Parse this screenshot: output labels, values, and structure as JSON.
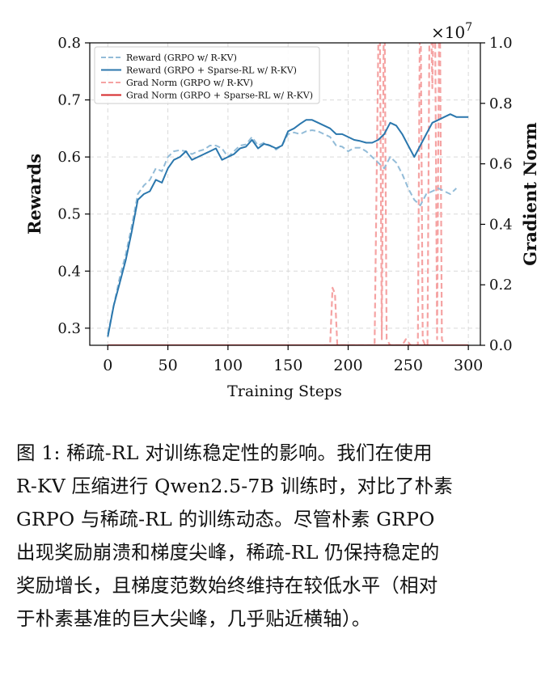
{
  "chart_data": {
    "type": "line",
    "xlabel": "Training Steps",
    "ylabel_left": "Rewards",
    "ylabel_right": "Gradient Norm",
    "right_axis_multiplier": "×10",
    "right_axis_exponent": "7",
    "xlim": [
      -15,
      310
    ],
    "ylim_left": [
      0.27,
      0.8
    ],
    "ylim_right": [
      0.0,
      1.0
    ],
    "x_ticks": [
      0,
      50,
      100,
      150,
      200,
      250,
      300
    ],
    "y_ticks_left": [
      0.3,
      0.4,
      0.5,
      0.6,
      0.7,
      0.8
    ],
    "y_ticks_right": [
      0.0,
      0.2,
      0.4,
      0.6,
      0.8,
      1.0
    ],
    "grid": true,
    "legend_position": "top-left",
    "colors": {
      "reward_grpo": "#93bcd8",
      "reward_sparse": "#2b77ad",
      "grad_grpo": "#f5a3a3",
      "grad_sparse": "#d62728"
    },
    "series": [
      {
        "name": "Reward (GRPO w/ R-KV)",
        "axis": "left",
        "style": "dashed",
        "x": [
          0,
          5,
          10,
          15,
          20,
          25,
          30,
          35,
          40,
          45,
          50,
          55,
          60,
          65,
          70,
          75,
          80,
          85,
          90,
          95,
          100,
          105,
          110,
          115,
          120,
          125,
          130,
          135,
          140,
          145,
          150,
          155,
          160,
          165,
          170,
          175,
          180,
          185,
          190,
          195,
          200,
          205,
          210,
          215,
          220,
          225,
          230,
          235,
          240,
          245,
          250,
          255,
          260,
          265,
          270,
          275,
          280,
          285,
          290
        ],
        "y": [
          0.29,
          0.34,
          0.39,
          0.43,
          0.48,
          0.535,
          0.55,
          0.56,
          0.58,
          0.575,
          0.6,
          0.61,
          0.612,
          0.61,
          0.605,
          0.61,
          0.613,
          0.62,
          0.62,
          0.615,
          0.6,
          0.61,
          0.62,
          0.622,
          0.635,
          0.62,
          0.625,
          0.62,
          0.613,
          0.62,
          0.64,
          0.643,
          0.64,
          0.645,
          0.647,
          0.645,
          0.64,
          0.635,
          0.62,
          0.618,
          0.61,
          0.616,
          0.616,
          0.61,
          0.6,
          0.59,
          0.58,
          0.6,
          0.59,
          0.57,
          0.545,
          0.525,
          0.515,
          0.535,
          0.54,
          0.545,
          0.54,
          0.535,
          0.545
        ]
      },
      {
        "name": "Reward (GRPO + Sparse-RL w/ R-KV)",
        "axis": "left",
        "style": "solid",
        "x": [
          0,
          5,
          10,
          15,
          20,
          25,
          30,
          35,
          40,
          45,
          50,
          55,
          60,
          65,
          70,
          75,
          80,
          85,
          90,
          95,
          100,
          105,
          110,
          115,
          120,
          125,
          130,
          135,
          140,
          145,
          150,
          155,
          160,
          165,
          170,
          175,
          180,
          185,
          190,
          195,
          200,
          205,
          210,
          215,
          220,
          225,
          230,
          235,
          240,
          245,
          250,
          255,
          260,
          265,
          270,
          275,
          280,
          285,
          290,
          295,
          300
        ],
        "y": [
          0.285,
          0.34,
          0.38,
          0.42,
          0.47,
          0.525,
          0.535,
          0.54,
          0.56,
          0.555,
          0.58,
          0.595,
          0.6,
          0.61,
          0.595,
          0.6,
          0.605,
          0.61,
          0.615,
          0.595,
          0.6,
          0.605,
          0.615,
          0.618,
          0.63,
          0.615,
          0.623,
          0.62,
          0.615,
          0.62,
          0.645,
          0.65,
          0.658,
          0.665,
          0.665,
          0.66,
          0.655,
          0.65,
          0.64,
          0.64,
          0.635,
          0.63,
          0.628,
          0.625,
          0.625,
          0.63,
          0.64,
          0.66,
          0.655,
          0.64,
          0.62,
          0.6,
          0.62,
          0.64,
          0.66,
          0.665,
          0.67,
          0.675,
          0.67,
          0.67,
          0.67
        ]
      },
      {
        "name": "Grad Norm (GRPO w/ R-KV)",
        "axis": "right",
        "style": "dashed",
        "x": [
          180,
          183,
          185,
          187,
          189,
          191,
          194,
          210,
          222,
          226,
          228,
          230,
          232,
          235,
          245,
          248,
          252,
          258,
          260,
          262,
          264,
          266,
          268,
          270,
          272,
          274,
          276,
          278,
          280
        ],
        "y": [
          0.0,
          0.0,
          0.0,
          0.19,
          0.17,
          0.0,
          0.0,
          0.0,
          0.0,
          1.3,
          0.02,
          1.3,
          0.02,
          0.0,
          0.0,
          0.02,
          0.0,
          0.0,
          1.3,
          0.02,
          0.0,
          0.0,
          1.3,
          0.85,
          1.3,
          0.02,
          1.3,
          0.02,
          0.0
        ]
      },
      {
        "name": "Grad Norm (GRPO + Sparse-RL w/ R-KV)",
        "axis": "right",
        "style": "solid",
        "x": [
          0,
          300
        ],
        "y": [
          0.0,
          0.0
        ]
      }
    ]
  },
  "caption": "图 1: 稀疏-RL 对训练稳定性的影响。我们在使用 R-KV 压缩进行 Qwen2.5-7B 训练时，对比了朴素 GRPO 与稀疏-RL 的训练动态。尽管朴素 GRPO 出现奖励崩溃和梯度尖峰，稀疏-RL 仍保持稳定的奖励增长，且梯度范数始终维持在较低水平（相对于朴素基准的巨大尖峰，几乎贴近横轴）。",
  "caption_lines": [
    "图 1: 稀疏-RL 对训练稳定性的影响。我们在使用",
    "R-KV 压缩进行 Qwen2.5-7B 训练时，对比了朴素",
    "GRPO 与稀疏-RL 的训练动态。尽管朴素 GRPO",
    "出现奖励崩溃和梯度尖峰，稀疏-RL 仍保持稳定的",
    "奖励增长，且梯度范数始终维持在较低水平（相对",
    "于朴素基准的巨大尖峰，几乎贴近横轴）。"
  ]
}
